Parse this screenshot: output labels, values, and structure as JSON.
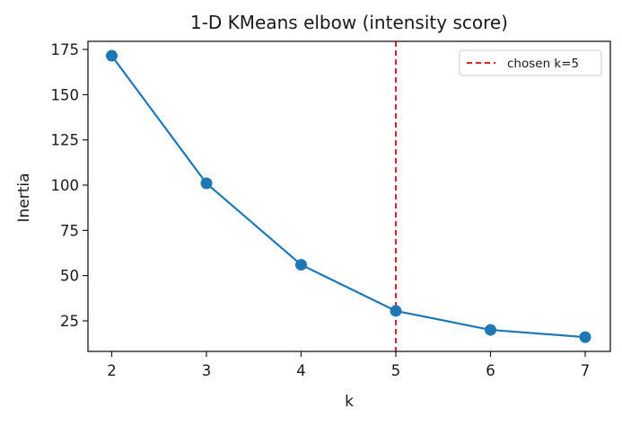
{
  "chart_data": {
    "type": "line",
    "title": "1-D KMeans elbow (intensity score)",
    "xlabel": "k",
    "ylabel": "Inertia",
    "x": [
      2,
      3,
      4,
      5,
      6,
      7
    ],
    "series": [
      {
        "name": "inertia",
        "values": [
          171.5,
          101,
          56,
          30.5,
          20,
          16
        ],
        "color": "#1f77b4",
        "marker": "circle"
      }
    ],
    "xticks": [
      "2",
      "3",
      "4",
      "5",
      "6",
      "7"
    ],
    "yticks": [
      "25",
      "50",
      "75",
      "100",
      "125",
      "150",
      "175"
    ],
    "xlim": [
      1.78,
      7.25
    ],
    "ylim": [
      8,
      180
    ],
    "annotations": [
      {
        "type": "vline",
        "x": 5,
        "style": "dashed",
        "color": "#d62728",
        "label": "chosen k=5"
      }
    ],
    "legend": {
      "position": "upper right",
      "entries": [
        "chosen k=5"
      ]
    },
    "grid": false
  }
}
